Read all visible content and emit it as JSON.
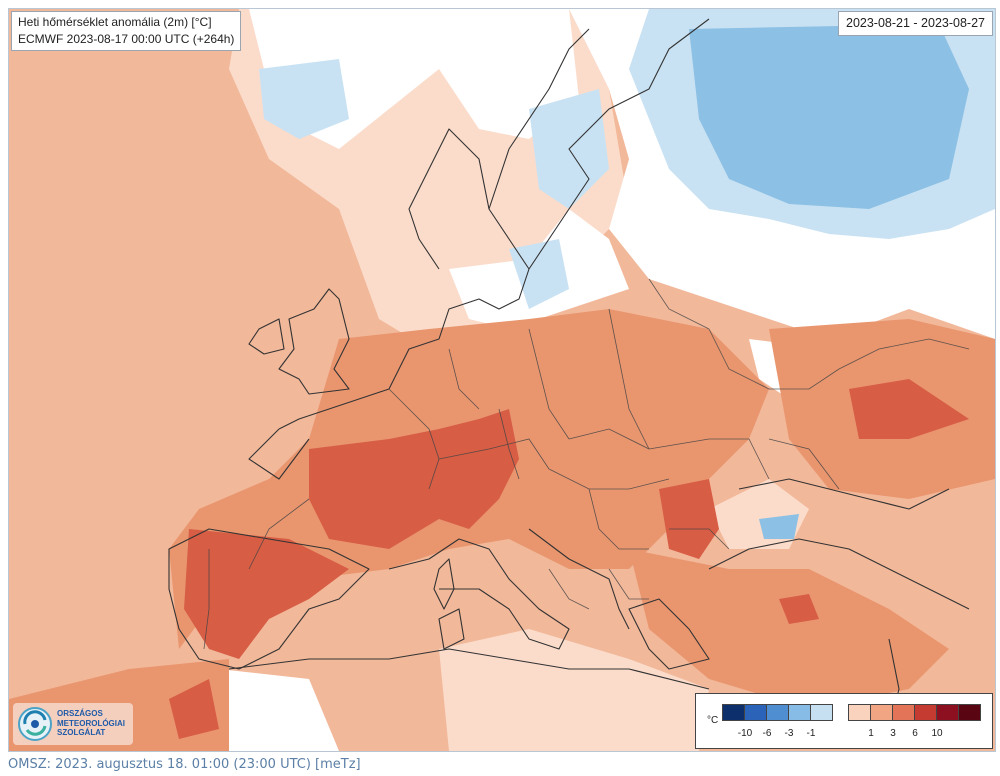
{
  "header": {
    "title": "Heti hőmérséklet anomália (2m) [°C]",
    "model_run": "ECMWF 2023-08-17 00:00 UTC (+264h)",
    "date_range": "2023-08-21 - 2023-08-27"
  },
  "legend": {
    "unit": "°C",
    "negative_colors": [
      "#0d2f6b",
      "#2a63b8",
      "#4f8fd1",
      "#86bce6",
      "#c6e0f2"
    ],
    "positive_colors": [
      "#fad3be",
      "#f2a582",
      "#e37458",
      "#c53a31",
      "#8c1020",
      "#5a0612"
    ],
    "negative_labels": [
      "-10",
      "-6",
      "-3",
      "-1"
    ],
    "positive_labels": [
      "1",
      "3",
      "6",
      "10"
    ]
  },
  "logo": {
    "text": "ORSZÁGOS\nMETEOROLÓGIAI\nSZOLGÁLAT",
    "icon": "omsz-swirl-icon"
  },
  "footer": {
    "text": "OMSZ: 2023. augusztus 18. 01:00 (23:00  UTC)  [meTz]"
  },
  "colors": {
    "anomaly_1_3": "#f2b89a",
    "anomaly_3_6": "#e9966f",
    "anomaly_6_10": "#d75d45",
    "anomaly_neutral": "#ffffff",
    "anomaly_neg_1_3": "#c9e2f3",
    "anomaly_neg_3_6": "#8cc0e4",
    "anomaly_light_warm": "#fbdccb"
  }
}
